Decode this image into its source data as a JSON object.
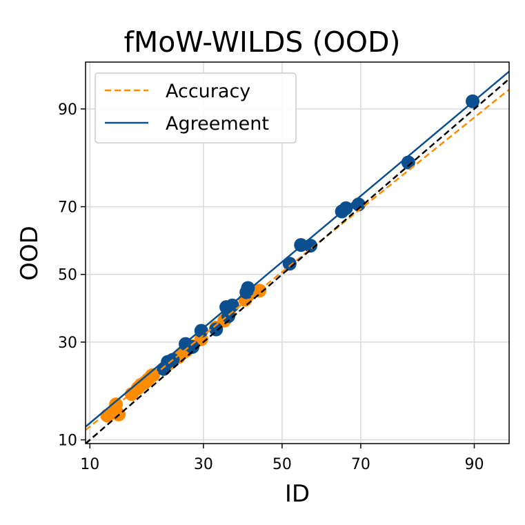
{
  "chart_data": {
    "type": "scatter",
    "title": "fMoW-WILDS (OOD)",
    "xlabel": "ID",
    "ylabel": "OOD",
    "scale": "probit",
    "xlim": [
      9.5,
      93.5
    ],
    "ylim": [
      9.5,
      95.0
    ],
    "xticks": [
      10,
      30,
      50,
      70,
      90
    ],
    "yticks": [
      10,
      30,
      50,
      70,
      90
    ],
    "grid": true,
    "legend": {
      "position": "top-left"
    },
    "colors": {
      "accuracy": "#ff8c00",
      "agreement": "#0b4f8f",
      "diagonal": "#000000",
      "grid": "#d9d9d9"
    },
    "series": [
      {
        "name": "Accuracy",
        "kind": "scatter",
        "color": "#ff8c00",
        "points": [
          [
            12.2,
            13.7
          ],
          [
            13.0,
            14.2
          ],
          [
            13.4,
            15.7
          ],
          [
            13.8,
            13.9
          ],
          [
            15.8,
            17.7
          ],
          [
            16.8,
            18.9
          ],
          [
            17.3,
            19.6
          ],
          [
            18.0,
            20.1
          ],
          [
            18.6,
            20.8
          ],
          [
            19.2,
            21.6
          ],
          [
            19.5,
            21.8
          ],
          [
            22.4,
            24.4
          ],
          [
            24.5,
            26.1
          ],
          [
            25.5,
            27.3
          ],
          [
            26.2,
            27.8
          ],
          [
            27.5,
            28.9
          ],
          [
            29.5,
            30.8
          ],
          [
            33.0,
            34.0
          ],
          [
            35.0,
            36.0
          ],
          [
            36.2,
            38.0
          ],
          [
            40.3,
            42.2
          ],
          [
            41.0,
            43.6
          ],
          [
            44.0,
            45.0
          ]
        ]
      },
      {
        "name": "Agreement",
        "kind": "scatter",
        "color": "#0b4f8f",
        "points": [
          [
            21.5,
            23.2
          ],
          [
            22.3,
            24.9
          ],
          [
            23.3,
            25.4
          ],
          [
            26.0,
            29.5
          ],
          [
            27.5,
            28.7
          ],
          [
            29.5,
            33.1
          ],
          [
            33.0,
            33.5
          ],
          [
            35.5,
            40.0
          ],
          [
            36.0,
            37.3
          ],
          [
            37.0,
            40.5
          ],
          [
            40.6,
            44.5
          ],
          [
            41.0,
            45.8
          ],
          [
            52.0,
            53.3
          ],
          [
            55.0,
            59.0
          ],
          [
            57.5,
            58.8
          ],
          [
            65.5,
            68.7
          ],
          [
            66.5,
            69.6
          ],
          [
            69.5,
            70.6
          ],
          [
            80.0,
            80.7
          ],
          [
            89.8,
            91.0
          ]
        ]
      },
      {
        "name": "Accuracy",
        "kind": "fit-line",
        "style": "dashed",
        "color": "#ff8c00",
        "points": [
          [
            9.5,
            11.4
          ],
          [
            93.5,
            92.4
          ]
        ]
      },
      {
        "name": "Agreement",
        "kind": "fit-line",
        "style": "solid",
        "color": "#0b4f8f",
        "points": [
          [
            9.5,
            11.9
          ],
          [
            93.5,
            94.2
          ]
        ]
      },
      {
        "name": "",
        "kind": "diagonal",
        "style": "dashed",
        "color": "#000000",
        "points": [
          [
            9.5,
            9.5
          ],
          [
            93.5,
            93.5
          ]
        ]
      }
    ]
  }
}
